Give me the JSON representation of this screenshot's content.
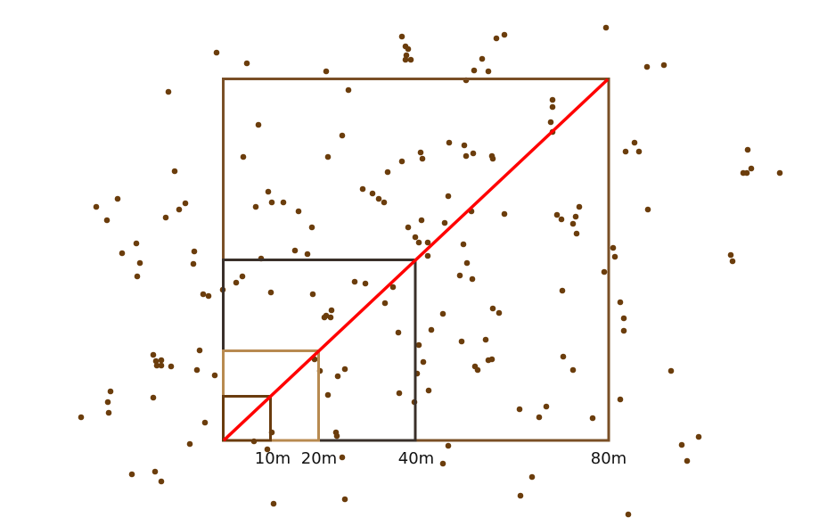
{
  "labels": {
    "s10": "10m",
    "s20": "20m",
    "s40": "40m",
    "s80": "80m"
  },
  "colors": {
    "dots": "#6b3d0c",
    "square_80": "#7a4f26",
    "square_40": "#3a302a",
    "square_20": "#b88a50",
    "square_10": "#6a3c0e",
    "diagonal": "#ff0000"
  }
}
